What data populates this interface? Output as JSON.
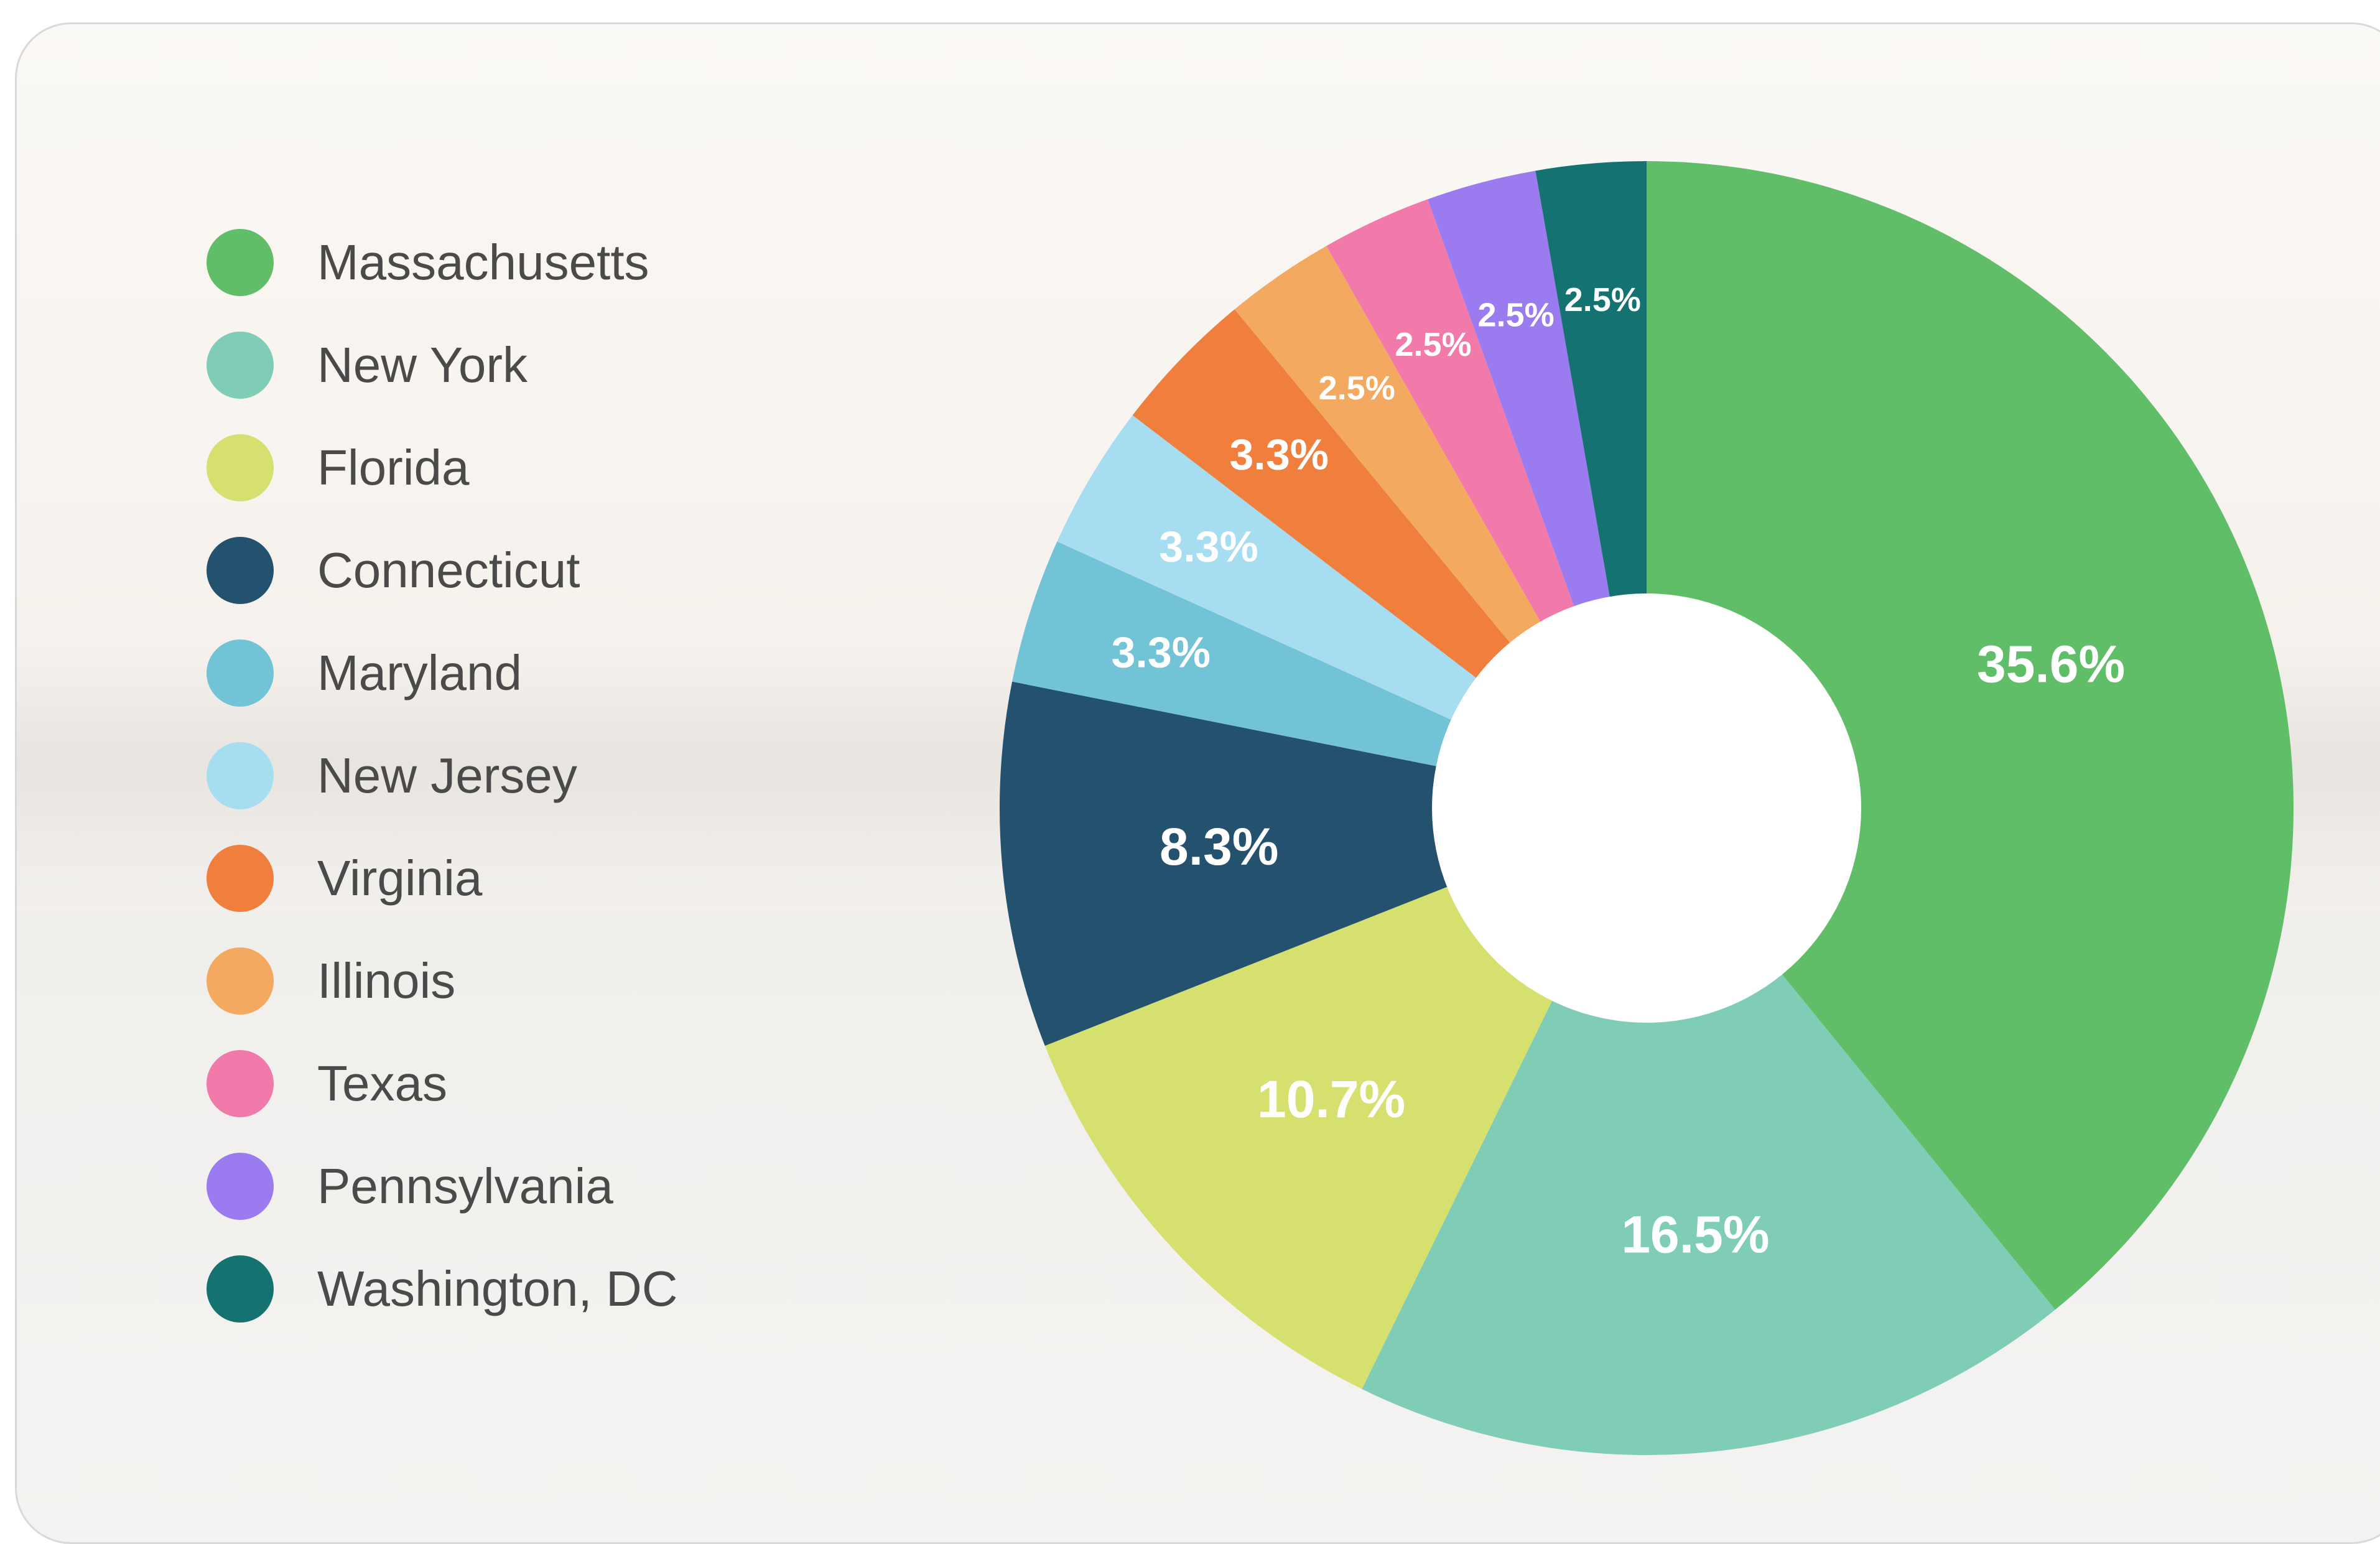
{
  "chart_data": {
    "type": "pie",
    "donut": true,
    "legend_position": "left",
    "start": "top",
    "direction": "clockwise",
    "slices": [
      {
        "name": "Massachusetts",
        "value": 35.6,
        "label": "35.6%",
        "color": "#60bd68"
      },
      {
        "name": "New York",
        "value": 16.5,
        "label": "16.5%",
        "color": "#80cdb7"
      },
      {
        "name": "Florida",
        "value": 10.7,
        "label": "10.7%",
        "color": "#d5e06f"
      },
      {
        "name": "Connecticut",
        "value": 8.3,
        "label": "8.3%",
        "color": "#24516e"
      },
      {
        "name": "Maryland",
        "value": 3.3,
        "label": "3.3%",
        "color": "#72c3d6"
      },
      {
        "name": "New Jersey",
        "value": 3.3,
        "label": "3.3%",
        "color": "#a7ddf0"
      },
      {
        "name": "Virginia",
        "value": 3.3,
        "label": "3.3%",
        "color": "#f07f3e"
      },
      {
        "name": "Illinois",
        "value": 2.5,
        "label": "2.5%",
        "color": "#f3a95f"
      },
      {
        "name": "Texas",
        "value": 2.5,
        "label": "2.5%",
        "color": "#f27aab"
      },
      {
        "name": "Pennsylvania",
        "value": 2.5,
        "label": "2.5%",
        "color": "#9b7bf0"
      },
      {
        "name": "Washington, DC",
        "value": 2.5,
        "label": "2.5%",
        "color": "#147370"
      }
    ]
  }
}
